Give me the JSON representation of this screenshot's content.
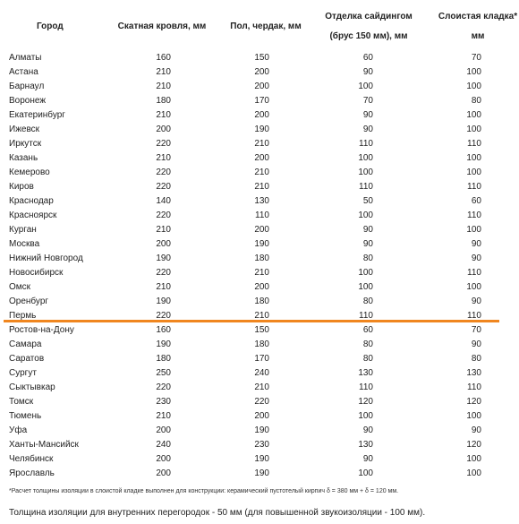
{
  "headers": {
    "city": "Город",
    "pitched_roof": "Скатная кровля, мм",
    "floor_attic": "Пол, чердак, мм",
    "siding_line1": "Отделка сайдингом",
    "siding_line2": "(брус 150 мм), мм",
    "masonry_line1": "Слоистая кладка*",
    "masonry_line2": "мм"
  },
  "rows": [
    {
      "city": "Алматы",
      "roof": "160",
      "floor": "150",
      "siding": "60",
      "masonry": "70"
    },
    {
      "city": "Астана",
      "roof": "210",
      "floor": "200",
      "siding": "90",
      "masonry": "100"
    },
    {
      "city": "Барнаул",
      "roof": "210",
      "floor": "200",
      "siding": "100",
      "masonry": "100"
    },
    {
      "city": "Воронеж",
      "roof": "180",
      "floor": "170",
      "siding": "70",
      "masonry": "80"
    },
    {
      "city": "Екатеринбург",
      "roof": "210",
      "floor": "200",
      "siding": "90",
      "masonry": "100"
    },
    {
      "city": "Ижевск",
      "roof": "200",
      "floor": "190",
      "siding": "90",
      "masonry": "100"
    },
    {
      "city": "Иркутск",
      "roof": "220",
      "floor": "210",
      "siding": "110",
      "masonry": "110"
    },
    {
      "city": "Казань",
      "roof": "210",
      "floor": "200",
      "siding": "100",
      "masonry": "100"
    },
    {
      "city": "Кемерово",
      "roof": "220",
      "floor": "210",
      "siding": "100",
      "masonry": "100"
    },
    {
      "city": "Киров",
      "roof": "220",
      "floor": "210",
      "siding": "110",
      "masonry": "110"
    },
    {
      "city": "Краснодар",
      "roof": "140",
      "floor": "130",
      "siding": "50",
      "masonry": "60"
    },
    {
      "city": "Красноярск",
      "roof": "220",
      "floor": "110",
      "siding": "100",
      "masonry": "110"
    },
    {
      "city": "Курган",
      "roof": "210",
      "floor": "200",
      "siding": "90",
      "masonry": "100"
    },
    {
      "city": "Москва",
      "roof": "200",
      "floor": "190",
      "siding": "90",
      "masonry": "90"
    },
    {
      "city": "Нижний Новгород",
      "roof": "190",
      "floor": "180",
      "siding": "80",
      "masonry": "90"
    },
    {
      "city": "Новосибирск",
      "roof": "220",
      "floor": "210",
      "siding": "100",
      "masonry": "110"
    },
    {
      "city": "Омск",
      "roof": "210",
      "floor": "200",
      "siding": "100",
      "masonry": "100"
    },
    {
      "city": "Оренбург",
      "roof": "190",
      "floor": "180",
      "siding": "80",
      "masonry": "90"
    },
    {
      "city": "Пермь",
      "roof": "220",
      "floor": "210",
      "siding": "110",
      "masonry": "110"
    },
    {
      "city": "Ростов-на-Дону",
      "roof": "160",
      "floor": "150",
      "siding": "60",
      "masonry": "70"
    },
    {
      "city": "Самара",
      "roof": "190",
      "floor": "180",
      "siding": "80",
      "masonry": "90"
    },
    {
      "city": "Саратов",
      "roof": "180",
      "floor": "170",
      "siding": "80",
      "masonry": "80"
    },
    {
      "city": "Сургут",
      "roof": "250",
      "floor": "240",
      "siding": "130",
      "masonry": "130"
    },
    {
      "city": "Сыктывкар",
      "roof": "220",
      "floor": "210",
      "siding": "110",
      "masonry": "110"
    },
    {
      "city": "Томск",
      "roof": "230",
      "floor": "220",
      "siding": "120",
      "masonry": "120"
    },
    {
      "city": "Тюмень",
      "roof": "210",
      "floor": "200",
      "siding": "100",
      "masonry": "100"
    },
    {
      "city": "Уфа",
      "roof": "200",
      "floor": "190",
      "siding": "90",
      "masonry": "90"
    },
    {
      "city": "Ханты-Мансийск",
      "roof": "240",
      "floor": "230",
      "siding": "130",
      "masonry": "120"
    },
    {
      "city": "Челябинск",
      "roof": "200",
      "floor": "190",
      "siding": "90",
      "masonry": "100"
    },
    {
      "city": "Ярославль",
      "roof": "200",
      "floor": "190",
      "siding": "100",
      "masonry": "100"
    }
  ],
  "footnote": "*Расчет толщины изоляции в слоистой кладке выполнен для конструкции: керамический пустотелый кирпич δ = 380 мм + δ = 120 мм.",
  "bottom_note": "Толщина изоляции для внутренних перегородок - 50 мм (для повышенной звукоизоляции - 100 мм).",
  "colors": {
    "divider": "#f0861f",
    "text": "#222222"
  }
}
